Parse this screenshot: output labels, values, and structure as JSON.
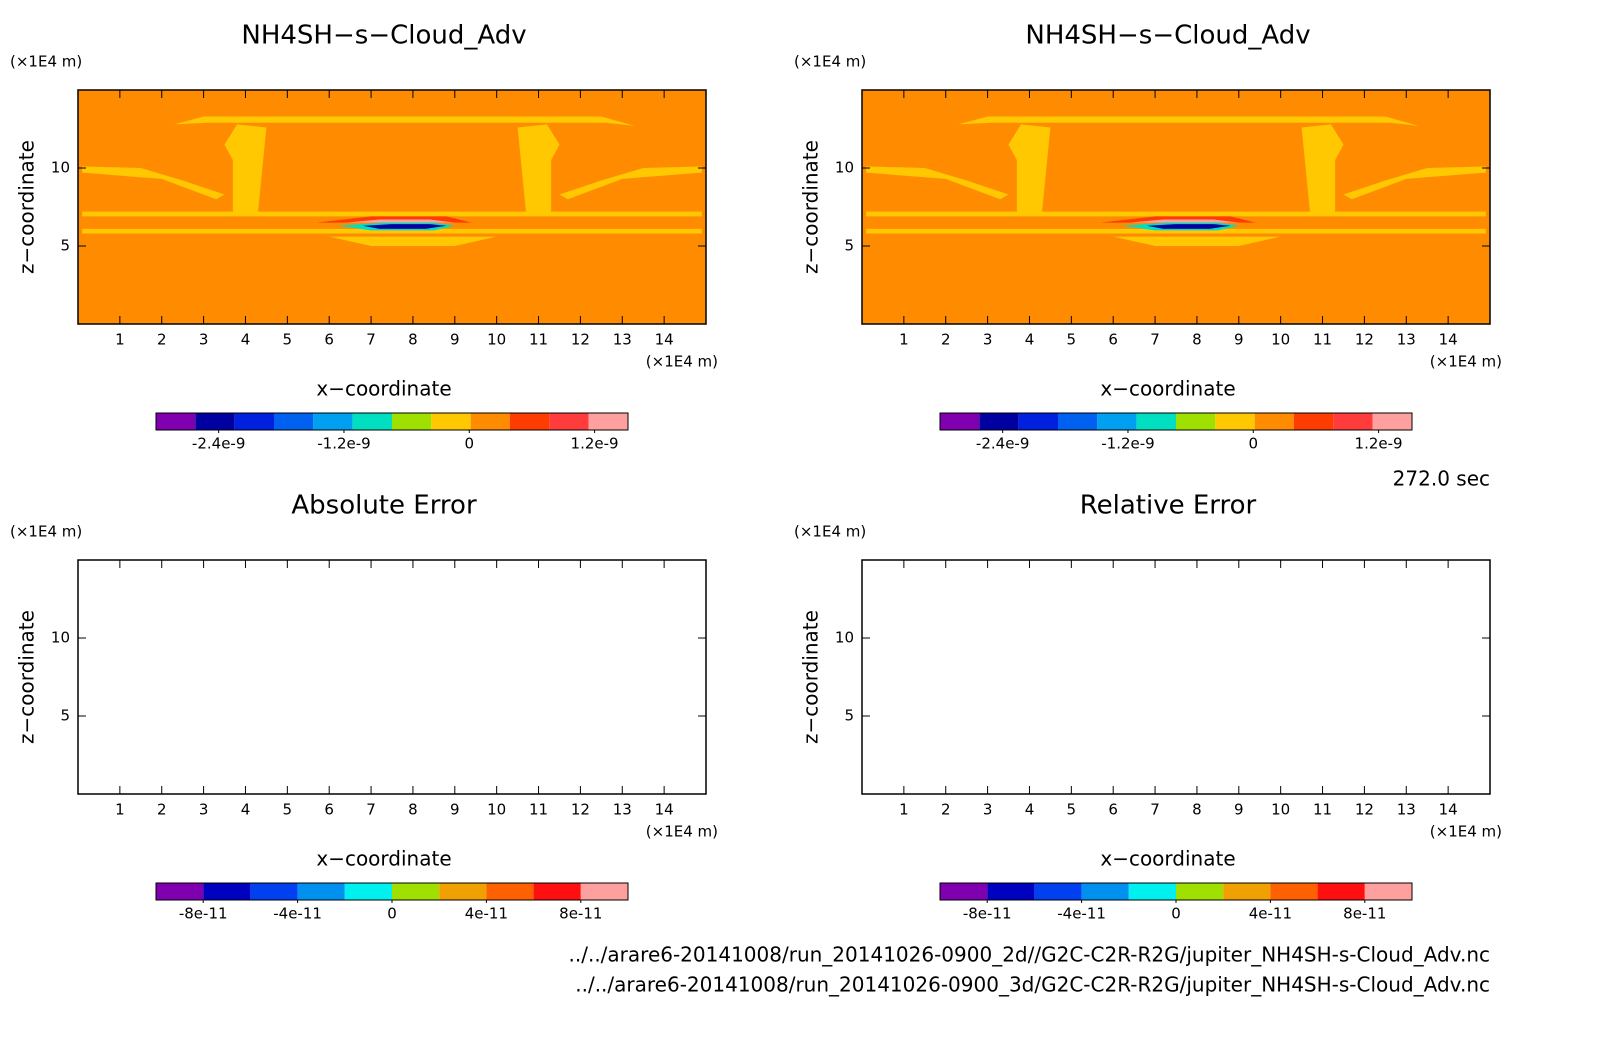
{
  "chart_data": [
    {
      "type": "contour",
      "title": "NH4SH−s−Cloud_Adv",
      "xlabel": "x−coordinate",
      "ylabel": "z−coordinate",
      "x_unit": "(×1E4 m)",
      "y_unit": "(×1E4 m)",
      "xlim": [
        0,
        15
      ],
      "ylim": [
        0,
        15
      ],
      "xticks": [
        1,
        2,
        3,
        4,
        5,
        6,
        7,
        8,
        9,
        10,
        11,
        12,
        13,
        14
      ],
      "yticks": [
        5,
        10
      ],
      "background": "#ff8c00",
      "colorbar": {
        "lim": [
          -3e-09,
          1.52e-09
        ],
        "colors": [
          "#8000b0",
          "#0000a0",
          "#0020e0",
          "#0060f0",
          "#00a0f0",
          "#00e0c0",
          "#a0e000",
          "#ffc800",
          "#ff8c00",
          "#ff3c00",
          "#ff3c3c",
          "#ffa0a0"
        ],
        "ticks": [
          -2.4e-09,
          -1.2e-09,
          0,
          1.2e-09
        ]
      }
    },
    {
      "type": "contour",
      "title": "NH4SH−s−Cloud_Adv",
      "xlabel": "x−coordinate",
      "ylabel": "z−coordinate",
      "x_unit": "(×1E4 m)",
      "y_unit": "(×1E4 m)",
      "xlim": [
        0,
        15
      ],
      "ylim": [
        0,
        15
      ],
      "xticks": [
        1,
        2,
        3,
        4,
        5,
        6,
        7,
        8,
        9,
        10,
        11,
        12,
        13,
        14
      ],
      "yticks": [
        5,
        10
      ],
      "background": "#ff8c00",
      "colorbar": {
        "lim": [
          -3e-09,
          1.52e-09
        ],
        "colors": [
          "#8000b0",
          "#0000a0",
          "#0020e0",
          "#0060f0",
          "#00a0f0",
          "#00e0c0",
          "#a0e000",
          "#ffc800",
          "#ff8c00",
          "#ff3c00",
          "#ff3c3c",
          "#ffa0a0"
        ],
        "ticks": [
          -2.4e-09,
          -1.2e-09,
          0,
          1.2e-09
        ]
      }
    },
    {
      "type": "contour",
      "title": "Absolute Error",
      "xlabel": "x−coordinate",
      "ylabel": "z−coordinate",
      "x_unit": "(×1E4 m)",
      "y_unit": "(×1E4 m)",
      "xlim": [
        0,
        15
      ],
      "ylim": [
        0,
        15
      ],
      "xticks": [
        1,
        2,
        3,
        4,
        5,
        6,
        7,
        8,
        9,
        10,
        11,
        12,
        13,
        14
      ],
      "yticks": [
        5,
        10
      ],
      "background": "#ffffff",
      "colorbar": {
        "lim": [
          -1e-10,
          1e-10
        ],
        "colors": [
          "#8000b0",
          "#0000c0",
          "#0040f0",
          "#0090f0",
          "#00f0f0",
          "#a0e000",
          "#f0a000",
          "#ff6000",
          "#ff1010",
          "#ffa0a0"
        ],
        "ticks": [
          -8e-11,
          -4e-11,
          0,
          4e-11,
          8e-11
        ]
      }
    },
    {
      "type": "contour",
      "title": "Relative Error",
      "xlabel": "x−coordinate",
      "ylabel": "z−coordinate",
      "x_unit": "(×1E4 m)",
      "y_unit": "(×1E4 m)",
      "xlim": [
        0,
        15
      ],
      "ylim": [
        0,
        15
      ],
      "xticks": [
        1,
        2,
        3,
        4,
        5,
        6,
        7,
        8,
        9,
        10,
        11,
        12,
        13,
        14
      ],
      "yticks": [
        5,
        10
      ],
      "background": "#ffffff",
      "colorbar": {
        "lim": [
          -1e-10,
          1e-10
        ],
        "colors": [
          "#8000b0",
          "#0000c0",
          "#0040f0",
          "#0090f0",
          "#00f0f0",
          "#a0e000",
          "#f0a000",
          "#ff6000",
          "#ff1010",
          "#ffa0a0"
        ],
        "ticks": [
          -8e-11,
          -4e-11,
          0,
          4e-11,
          8e-11
        ]
      }
    }
  ],
  "time_label": "272.0 sec",
  "files": [
    "../../arare6-20141008/run_20141026-0900_2d//G2C-C2R-R2G/jupiter_NH4SH-s-Cloud_Adv.nc",
    "../../arare6-20141008/run_20141026-0900_3d/G2C-C2R-R2G/jupiter_NH4SH-s-Cloud_Adv.nc"
  ]
}
